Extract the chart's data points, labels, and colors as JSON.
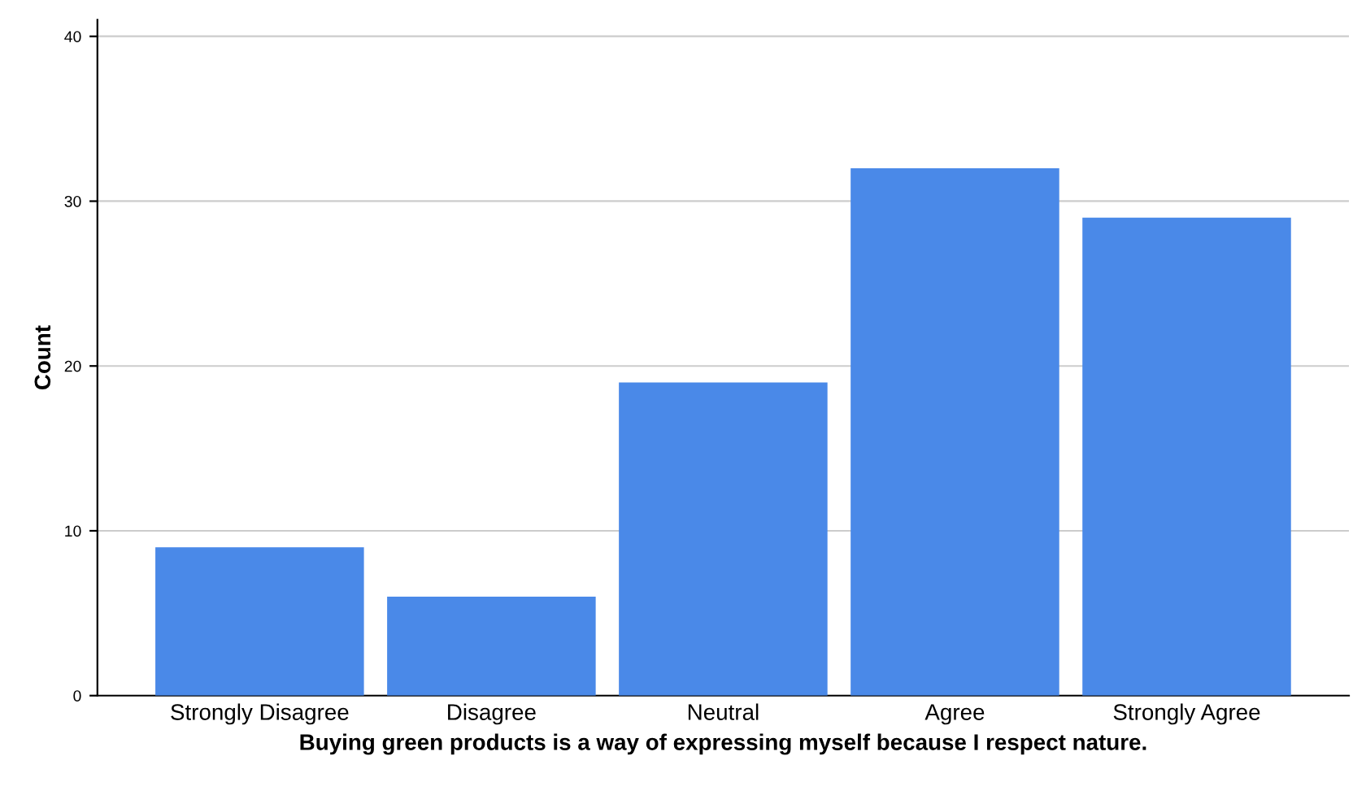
{
  "chart_data": {
    "type": "bar",
    "xlabel": "Buying green products is a way of expressing myself because I respect nature.",
    "ylabel": "Count",
    "categories": [
      "Strongly Disagree",
      "Disagree",
      "Neutral",
      "Agree",
      "Strongly Agree"
    ],
    "values": [
      9,
      6,
      19,
      32,
      29
    ],
    "color": "#4a89e8",
    "ylim": [
      0,
      41
    ],
    "yticks": [
      0,
      10,
      20,
      30,
      40
    ],
    "grid": "y"
  }
}
